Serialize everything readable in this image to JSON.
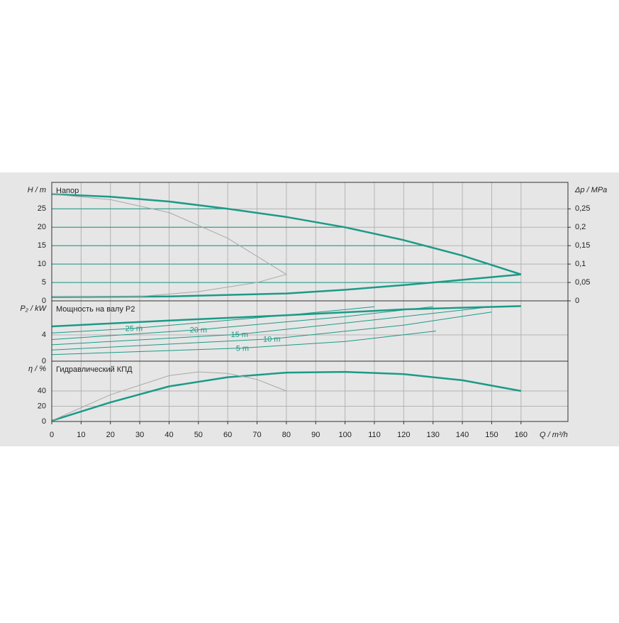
{
  "chart_data": [
    {
      "type": "line",
      "title": "Напор",
      "ylabel": "H / m",
      "y2label": "Δp / MPa",
      "xlim": [
        0,
        176
      ],
      "ylim": [
        0,
        32.2
      ],
      "yticks": [
        0,
        5,
        10,
        15,
        20,
        25
      ],
      "y2lim": [
        0,
        0.322
      ],
      "y2ticks": [
        0,
        {
          "value": 0.05,
          "label": "0,05"
        },
        {
          "value": 0.1,
          "label": "0,1"
        },
        {
          "value": 0.15,
          "label": "0,15"
        },
        {
          "value": 0.2,
          "label": "0,2"
        },
        {
          "value": 0.25,
          "label": "0,25"
        }
      ],
      "grid": true,
      "series": [
        {
          "color": "#1c9a87",
          "linewidth": 2.5,
          "x": [
            0,
            20,
            40,
            60,
            80,
            100,
            120,
            140,
            160
          ],
          "values": [
            29,
            28.3,
            27,
            25,
            22.8,
            20,
            16.5,
            12.3,
            7.2
          ]
        },
        {
          "color": "#1c9a87",
          "linewidth": 2.5,
          "x": [
            0,
            40,
            80,
            100,
            120,
            140,
            160
          ],
          "values": [
            1,
            1.2,
            2,
            3,
            4.3,
            5.7,
            7.2
          ]
        },
        {
          "color": "#1c9a87",
          "linewidth": 1,
          "x": [
            0,
            60
          ],
          "values": [
            25,
            25
          ]
        },
        {
          "color": "#1c9a87",
          "linewidth": 1,
          "x": [
            0,
            100
          ],
          "values": [
            20,
            20
          ]
        },
        {
          "color": "#1c9a87",
          "linewidth": 1,
          "x": [
            0,
            127
          ],
          "values": [
            15,
            15
          ]
        },
        {
          "color": "#1c9a87",
          "linewidth": 1,
          "x": [
            0,
            149
          ],
          "values": [
            10,
            10
          ]
        },
        {
          "color": "#1c9a87",
          "linewidth": 1,
          "x": [
            0,
            160
          ],
          "values": [
            5,
            5
          ]
        },
        {
          "color": "#a8a8a8",
          "linewidth": 1,
          "x": [
            0,
            20,
            40,
            60,
            80
          ],
          "values": [
            29,
            27.5,
            24,
            17,
            7.2
          ]
        },
        {
          "color": "#a8a8a8",
          "linewidth": 1,
          "x": [
            0,
            30,
            50,
            70,
            80
          ],
          "values": [
            1,
            1.2,
            2.5,
            5,
            7.2
          ]
        }
      ]
    },
    {
      "type": "line",
      "title": "Мощность на валу P2",
      "ylabel": "P₂ / kW",
      "xlim": [
        0,
        176
      ],
      "ylim": [
        0,
        9.2
      ],
      "yticks": [
        0,
        4
      ],
      "grid": true,
      "series": [
        {
          "color": "#1c9a87",
          "linewidth": 2.5,
          "x": [
            0,
            40,
            80,
            120,
            160
          ],
          "values": [
            5.3,
            6.2,
            7.0,
            7.9,
            8.4
          ]
        },
        {
          "name": "25 m",
          "color": "#1c9a87",
          "linewidth": 1,
          "x": [
            0,
            28,
            80,
            110
          ],
          "values": [
            4.3,
            5.0,
            7.0,
            8.3
          ]
        },
        {
          "name": "20 m",
          "color": "#1c9a87",
          "linewidth": 1,
          "x": [
            0,
            50,
            100,
            130
          ],
          "values": [
            3.3,
            4.8,
            6.8,
            8.3
          ]
        },
        {
          "name": "15 m",
          "color": "#1c9a87",
          "linewidth": 1,
          "x": [
            0,
            64,
            110,
            150
          ],
          "values": [
            2.5,
            4.1,
            6.3,
            8.3
          ]
        },
        {
          "name": "10 m",
          "color": "#1c9a87",
          "linewidth": 1,
          "x": [
            0,
            75,
            120,
            150
          ],
          "values": [
            1.7,
            3.4,
            5.5,
            7.5
          ]
        },
        {
          "name": "5 m",
          "color": "#1c9a87",
          "linewidth": 1,
          "x": [
            0,
            65,
            100,
            131
          ],
          "values": [
            1,
            2.0,
            3,
            4.6
          ]
        }
      ]
    },
    {
      "type": "line",
      "title": "Гидравлический КПД",
      "ylabel": "η / %",
      "xlabel": "Q / m³/h",
      "xlim": [
        0,
        176
      ],
      "ylim": [
        0,
        79
      ],
      "yticks": [
        0,
        20,
        40
      ],
      "xticks": [
        0,
        10,
        20,
        30,
        40,
        50,
        60,
        70,
        80,
        90,
        100,
        110,
        120,
        130,
        140,
        150,
        160
      ],
      "grid": true,
      "series": [
        {
          "color": "#1c9a87",
          "linewidth": 2.5,
          "x": [
            0,
            20,
            40,
            60,
            80,
            100,
            120,
            140,
            160
          ],
          "values": [
            1,
            25,
            46,
            58,
            64,
            65,
            62,
            54,
            40
          ]
        },
        {
          "color": "#a8a8a8",
          "linewidth": 1,
          "x": [
            0,
            20,
            40,
            50,
            60,
            70,
            80
          ],
          "values": [
            1,
            35,
            60,
            65,
            63,
            55,
            40
          ]
        }
      ]
    }
  ]
}
